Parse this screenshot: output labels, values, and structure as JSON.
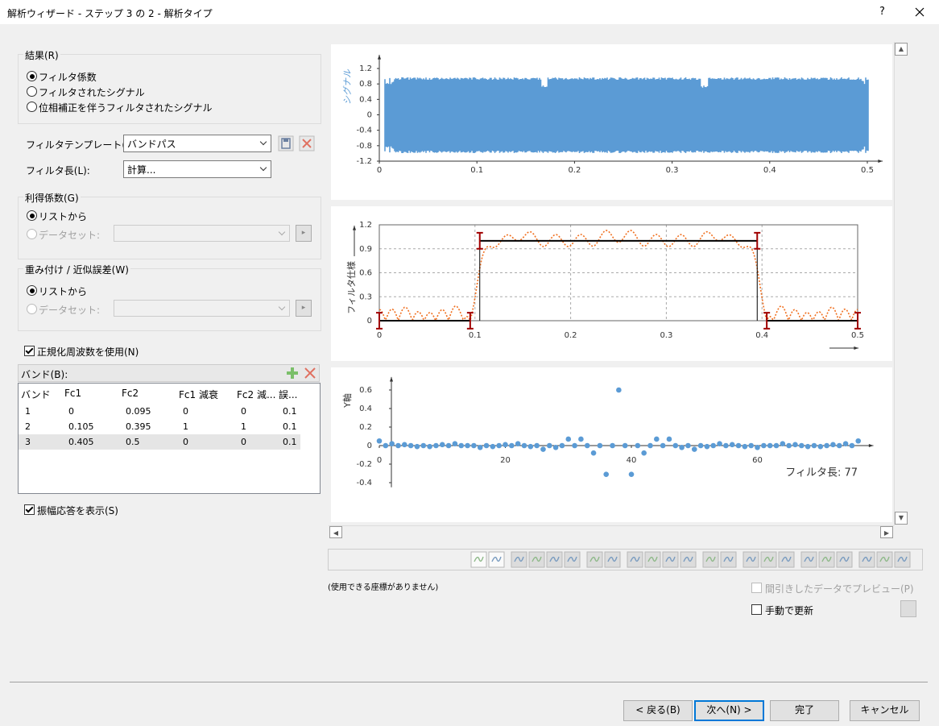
{
  "window": {
    "title": "解析ウィザード - ステップ 3 の 2 - 解析タイプ",
    "help": "?"
  },
  "result_group": {
    "label": "結果(R)",
    "options": [
      "フィルタ係数",
      "フィルタされたシグナル",
      "位相補正を伴うフィルタされたシグナル"
    ],
    "selected": 0
  },
  "filter_template": {
    "label": "フィルタテンプレート(T):",
    "value": "バンドパス"
  },
  "filter_length": {
    "label": "フィルタ長(L):",
    "value": "計算..."
  },
  "gain_group": {
    "label": "利得係数(G)",
    "options": [
      "リストから",
      "データセット:"
    ],
    "selected": 0
  },
  "weight_group": {
    "label": "重み付け / 近似誤差(W)",
    "options": [
      "リストから",
      "データセット:"
    ],
    "selected": 0
  },
  "normalized_checkbox": {
    "label": "正規化周波数を使用(N)",
    "checked": true
  },
  "bands": {
    "label": "バンド(B):",
    "columns": [
      "バンド",
      "Fc1",
      "Fc2",
      "Fc1 減衰",
      "Fc2 減...",
      "誤..."
    ],
    "rows": [
      [
        1,
        0,
        0.095,
        0,
        0,
        0.1
      ],
      [
        2,
        0.105,
        0.395,
        1,
        1,
        0.1
      ],
      [
        3,
        0.405,
        0.5,
        0,
        0,
        0.1
      ]
    ]
  },
  "amplitude_checkbox": {
    "label": "振幅応答を表示(S)",
    "checked": true
  },
  "chart_data": [
    {
      "type": "signal",
      "y_label": "シグナル",
      "color": "#5b9bd5",
      "xlim": [
        0,
        0.5
      ],
      "ylim": [
        -1.2,
        1.2
      ],
      "xticks": [
        0,
        0.1,
        0.2,
        0.3,
        0.4,
        0.5
      ],
      "yticks": [
        -1.2,
        -0.8,
        -0.4,
        0,
        0.4,
        0.8,
        1.2
      ]
    },
    {
      "type": "filter_spec",
      "y_label": "フィルタ仕様",
      "grid": true,
      "band_color": "#000000",
      "error_color": "#a00000",
      "response_color": "#f07020",
      "xlim": [
        0,
        0.5
      ],
      "ylim": [
        0,
        1.2
      ],
      "xticks": [
        0,
        0.1,
        0.2,
        0.3,
        0.4,
        0.5
      ],
      "yticks": [
        0,
        0.3,
        0.6,
        0.9,
        1.2
      ]
    },
    {
      "type": "scatter",
      "y_label": "Y軸",
      "annotation": "フィルタ長: 77",
      "color": "#5b9bd5",
      "xlim": [
        0,
        78.4
      ],
      "ylim": [
        -0.45,
        0.74
      ],
      "xticks": [
        0,
        20,
        40,
        60
      ],
      "yticks": [
        -0.4,
        -0.2,
        0,
        0.2,
        0.4,
        0.6
      ],
      "values": [
        0.05,
        0,
        0.02,
        0,
        0.01,
        0,
        -0.01,
        0,
        -0.01,
        0,
        0.01,
        0,
        0.02,
        0,
        0,
        0,
        -0.02,
        0,
        -0.01,
        0,
        0.01,
        0,
        0.02,
        0,
        -0.01,
        0,
        -0.04,
        0,
        -0.02,
        0,
        0.07,
        0,
        0.07,
        0,
        -0.08,
        0,
        -0.31,
        0,
        0.6,
        0,
        -0.31,
        0,
        -0.08,
        0,
        0.07,
        0,
        0.07,
        0,
        -0.02,
        0,
        -0.04,
        0,
        -0.01,
        0,
        0.02,
        0,
        0.01,
        0,
        -0.01,
        0,
        -0.02,
        0,
        0,
        0,
        0.02,
        0,
        0.01,
        0,
        -0.01,
        0,
        -0.01,
        0,
        0.01,
        0,
        0.02,
        0,
        0.05
      ]
    }
  ],
  "status": "(使用できる座標がありません)",
  "preview_checkbox": {
    "label": "間引きしたデータでプレビュー(P)",
    "checked": false
  },
  "manual_update_checkbox": {
    "label": "手動で更新",
    "checked": false
  },
  "buttons": [
    "< 戻る(B)",
    "次へ(N) >",
    "完了",
    "キャンセル"
  ]
}
